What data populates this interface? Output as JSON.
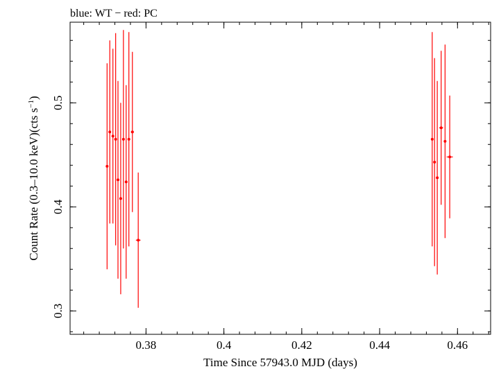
{
  "chart_data": {
    "type": "scatter",
    "title": "blue: WT − red: PC",
    "xlabel": "Time Since 57943.0 MJD (days)",
    "ylabel_main": "Count Rate (0.3–10.0 keV)(cts s",
    "ylabel_sup": "−1",
    "ylabel_close": ")",
    "xlim": [
      0.3605,
      0.4685
    ],
    "ylim": [
      0.2775,
      0.5775
    ],
    "xticks": [
      0.38,
      0.4,
      0.42,
      0.44,
      0.46
    ],
    "xtick_labels": [
      "0.38",
      "0.4",
      "0.42",
      "0.44",
      "0.46"
    ],
    "yticks": [
      0.3,
      0.4,
      0.5
    ],
    "ytick_labels": [
      "0.3",
      "0.4",
      "0.5"
    ],
    "grid": false,
    "legend": "none",
    "series": [
      {
        "color": "#ff0000",
        "points": [
          {
            "x": 0.37,
            "xerr": 0.0003,
            "y": 0.439,
            "yerr_lo": 0.099,
            "yerr_hi": 0.099
          },
          {
            "x": 0.3707,
            "xerr": 0.0003,
            "y": 0.472,
            "yerr_lo": 0.088,
            "yerr_hi": 0.088
          },
          {
            "x": 0.3715,
            "xerr": 0.0003,
            "y": 0.468,
            "yerr_lo": 0.084,
            "yerr_hi": 0.084
          },
          {
            "x": 0.3722,
            "xerr": 0.0003,
            "y": 0.465,
            "yerr_lo": 0.102,
            "yerr_hi": 0.102
          },
          {
            "x": 0.3728,
            "xerr": 0.0003,
            "y": 0.426,
            "yerr_lo": 0.095,
            "yerr_hi": 0.095
          },
          {
            "x": 0.3735,
            "xerr": 0.0003,
            "y": 0.408,
            "yerr_lo": 0.092,
            "yerr_hi": 0.092
          },
          {
            "x": 0.3742,
            "xerr": 0.0003,
            "y": 0.465,
            "yerr_lo": 0.105,
            "yerr_hi": 0.105
          },
          {
            "x": 0.3749,
            "xerr": 0.0003,
            "y": 0.424,
            "yerr_lo": 0.093,
            "yerr_hi": 0.093
          },
          {
            "x": 0.3756,
            "xerr": 0.0003,
            "y": 0.465,
            "yerr_lo": 0.103,
            "yerr_hi": 0.103
          },
          {
            "x": 0.3765,
            "xerr": 0.0004,
            "y": 0.472,
            "yerr_lo": 0.077,
            "yerr_hi": 0.077
          },
          {
            "x": 0.378,
            "xerr": 0.0006,
            "y": 0.368,
            "yerr_lo": 0.065,
            "yerr_hi": 0.065
          },
          {
            "x": 0.4535,
            "xerr": 0.0003,
            "y": 0.465,
            "yerr_lo": 0.103,
            "yerr_hi": 0.103
          },
          {
            "x": 0.4541,
            "xerr": 0.0003,
            "y": 0.443,
            "yerr_lo": 0.1,
            "yerr_hi": 0.1
          },
          {
            "x": 0.4548,
            "xerr": 0.0003,
            "y": 0.428,
            "yerr_lo": 0.093,
            "yerr_hi": 0.093
          },
          {
            "x": 0.4558,
            "xerr": 0.0005,
            "y": 0.476,
            "yerr_lo": 0.074,
            "yerr_hi": 0.074
          },
          {
            "x": 0.4568,
            "xerr": 0.0003,
            "y": 0.463,
            "yerr_lo": 0.093,
            "yerr_hi": 0.093
          },
          {
            "x": 0.458,
            "xerr": 0.0008,
            "y": 0.448,
            "yerr_lo": 0.059,
            "yerr_hi": 0.059
          }
        ]
      }
    ]
  }
}
